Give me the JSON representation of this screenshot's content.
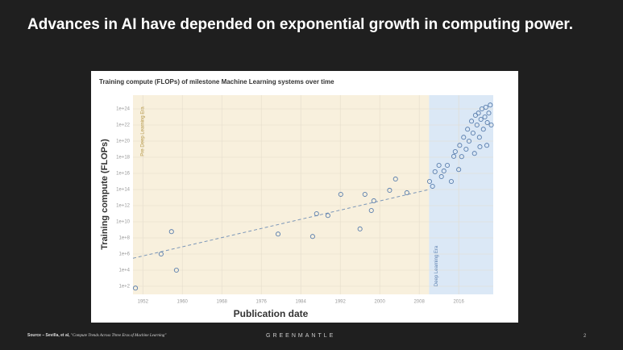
{
  "slide": {
    "title": "Advances in AI have depended on exponential growth in computing power.",
    "source_label": "Source – Sevilla, et al,",
    "source_title": "\"Compute Trends Across Three Eras of Machine Learning\"",
    "brand": "GREENMANTLE",
    "page": 2
  },
  "chart_data": {
    "type": "scatter",
    "title": "Training compute (FLOPs) of milestone Machine Learning systems over time",
    "x_label": "Publication date",
    "y_label": "Training compute (FLOPs)",
    "log_scale_y": true,
    "grid": true,
    "marker_color": "#5b7fae",
    "xlim": [
      1950,
      2023
    ],
    "xticks": [
      1952,
      1960,
      1968,
      1976,
      1984,
      1992,
      2000,
      2008,
      2016
    ],
    "ylim": [
      10,
      5e+25
    ],
    "yticks": [
      {
        "value": 100,
        "label": "1e+2"
      },
      {
        "value": 10000,
        "label": "1e+4"
      },
      {
        "value": 1000000,
        "label": "1e+6"
      },
      {
        "value": 100000000,
        "label": "1e+8"
      },
      {
        "value": 10000000000,
        "label": "1e+10"
      },
      {
        "value": 1000000000000,
        "label": "1e+12"
      },
      {
        "value": 100000000000000,
        "label": "1e+14"
      },
      {
        "value": 1e+16,
        "label": "1e+16"
      },
      {
        "value": 1e+18,
        "label": "1e+18"
      },
      {
        "value": 1e+20,
        "label": "1e+20"
      },
      {
        "value": 1e+22,
        "label": "1e+22"
      },
      {
        "value": 1e+24,
        "label": "1e+24"
      }
    ],
    "eras": [
      {
        "label": "Pre Deep Learning Era",
        "start": 1950,
        "end": 2010,
        "color": "#f8f0dd"
      },
      {
        "label": "Deep Learning Era",
        "start": 2010,
        "end": 2023,
        "color": "#dbe8f6"
      }
    ],
    "points": {
      "x": [
        1950.5,
        1955.7,
        1957.8,
        1958.8,
        1979.4,
        1986.4,
        1987.2,
        1989.5,
        1992.1,
        1996,
        1997,
        1998.3,
        1998.8,
        2002,
        2003.2,
        2005.5,
        2010.1,
        2010.7,
        2011.2,
        2012,
        2012.5,
        2013,
        2013.7,
        2014.5,
        2015,
        2015.3,
        2016,
        2016.2,
        2016.6,
        2017,
        2017.5,
        2017.8,
        2018.1,
        2018.6,
        2018.9,
        2019.2,
        2019.4,
        2019.7,
        2020,
        2020.2,
        2020.3,
        2020.5,
        2020.7,
        2021,
        2021.3,
        2021.5,
        2021.7,
        2021.8,
        2022.1,
        2022.4,
        2022.6
      ],
      "values": [
        60,
        1000000,
        600000000,
        10000,
        300000000,
        150000000,
        100000000000,
        60000000000,
        25000000000000,
        1300000000,
        25000000000000,
        250000000000,
        4000000000000,
        80000000000000,
        2000000000000000,
        40000000000000,
        1000000000000000,
        250000000000000,
        1.6e+16,
        1e+17,
        4000000000000000,
        2e+16,
        1e+17,
        1000000000000000,
        1.3e+18,
        5e+18,
        3e+16,
        3e+19,
        1.2e+18,
        3e+20,
        1e+19,
        3e+21,
        1e+20,
        3e+22,
        1e+21,
        3e+18,
        1.6e+23,
        1e+22,
        3e+23,
        3e+20,
        2e+19,
        5e+22,
        1e+24,
        3e+21,
        1e+23,
        1.6e+24,
        3e+19,
        2e+22,
        3e+23,
        3e+24,
        1e+22
      ]
    },
    "trend": {
      "x": [
        1950,
        2010
      ],
      "values": [
        300000,
        100000000000000
      ]
    }
  }
}
